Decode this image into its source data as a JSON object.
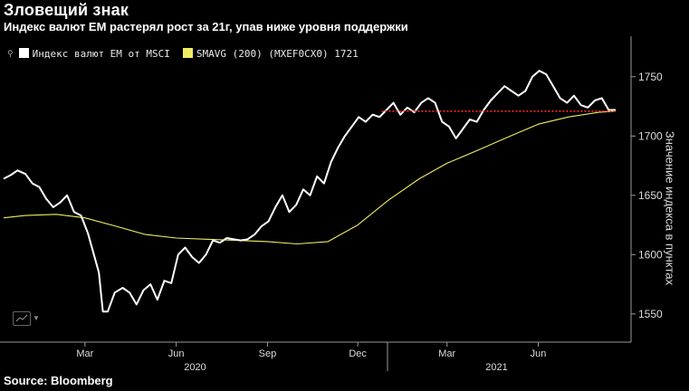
{
  "header": {
    "title": "Зловещий знак",
    "subtitle": "Индекс валют ЕМ растерял рост за 21г, упав ниже уровня поддержки"
  },
  "footer": {
    "source": "Source:  Bloomberg"
  },
  "legend": {
    "series1": "Индекс валют EM от MSCI",
    "series2": "SMAVG (200)  (MXEF0CX0) 1721"
  },
  "colors": {
    "series1": "#ffffff",
    "series2": "#f0ec64",
    "support": "#ff2a2a",
    "axis": "#9a9a9a"
  },
  "toolbar": {
    "chart_tool_icon": "line-chart-icon"
  },
  "chart_data": {
    "type": "line",
    "title": "Зловещий знак",
    "subtitle": "Индекс валют ЕМ растерял рост за 21г, упав ниже уровня поддержки",
    "ylabel": "Значение индекса в пунктах",
    "ylim": [
      1527,
      1775
    ],
    "yticks": [
      1550,
      1600,
      1650,
      1700,
      1750
    ],
    "xlim": [
      "2019-12-10",
      "2021-08-18"
    ],
    "month_ticks": [
      {
        "label": "Mar",
        "x": "2020-03-01"
      },
      {
        "label": "Jun",
        "x": "2020-06-01"
      },
      {
        "label": "Sep",
        "x": "2020-09-01"
      },
      {
        "label": "Dec",
        "x": "2020-12-01"
      },
      {
        "label": "Mar",
        "x": "2021-03-01"
      },
      {
        "label": "Jun",
        "x": "2021-06-01"
      }
    ],
    "year_labels": [
      {
        "label": "2020",
        "x": "2020-06-20"
      },
      {
        "label": "2021",
        "x": "2021-04-20"
      }
    ],
    "year_separator": "2020-12-31",
    "legend_position": "top-left",
    "grid": false,
    "series": [
      {
        "name": "Индекс валют EM от MSCI",
        "points": [
          [
            "2019-12-10",
            1664
          ],
          [
            "2019-12-17",
            1667
          ],
          [
            "2019-12-24",
            1671
          ],
          [
            "2020-01-01",
            1668
          ],
          [
            "2020-01-08",
            1660
          ],
          [
            "2020-01-15",
            1657
          ],
          [
            "2020-01-22",
            1647
          ],
          [
            "2020-01-29",
            1640
          ],
          [
            "2020-02-05",
            1644
          ],
          [
            "2020-02-12",
            1650
          ],
          [
            "2020-02-19",
            1636
          ],
          [
            "2020-02-26",
            1633
          ],
          [
            "2020-03-04",
            1618
          ],
          [
            "2020-03-10",
            1600
          ],
          [
            "2020-03-15",
            1585
          ],
          [
            "2020-03-19",
            1552
          ],
          [
            "2020-03-24",
            1552
          ],
          [
            "2020-03-31",
            1568
          ],
          [
            "2020-04-08",
            1572
          ],
          [
            "2020-04-15",
            1568
          ],
          [
            "2020-04-22",
            1558
          ],
          [
            "2020-04-29",
            1570
          ],
          [
            "2020-05-06",
            1575
          ],
          [
            "2020-05-13",
            1562
          ],
          [
            "2020-05-20",
            1578
          ],
          [
            "2020-05-27",
            1576
          ],
          [
            "2020-06-03",
            1600
          ],
          [
            "2020-06-10",
            1606
          ],
          [
            "2020-06-17",
            1598
          ],
          [
            "2020-06-24",
            1593
          ],
          [
            "2020-07-01",
            1600
          ],
          [
            "2020-07-08",
            1612
          ],
          [
            "2020-07-15",
            1610
          ],
          [
            "2020-07-22",
            1614
          ],
          [
            "2020-07-29",
            1613
          ],
          [
            "2020-08-05",
            1612
          ],
          [
            "2020-08-12",
            1613
          ],
          [
            "2020-08-19",
            1617
          ],
          [
            "2020-08-26",
            1624
          ],
          [
            "2020-09-02",
            1628
          ],
          [
            "2020-09-09",
            1640
          ],
          [
            "2020-09-16",
            1650
          ],
          [
            "2020-09-23",
            1636
          ],
          [
            "2020-09-30",
            1642
          ],
          [
            "2020-10-07",
            1655
          ],
          [
            "2020-10-14",
            1650
          ],
          [
            "2020-10-21",
            1666
          ],
          [
            "2020-10-28",
            1660
          ],
          [
            "2020-11-04",
            1678
          ],
          [
            "2020-11-11",
            1690
          ],
          [
            "2020-11-18",
            1700
          ],
          [
            "2020-11-25",
            1708
          ],
          [
            "2020-12-02",
            1716
          ],
          [
            "2020-12-09",
            1712
          ],
          [
            "2020-12-16",
            1718
          ],
          [
            "2020-12-23",
            1716
          ],
          [
            "2020-12-30",
            1722
          ],
          [
            "2021-01-06",
            1728
          ],
          [
            "2021-01-13",
            1718
          ],
          [
            "2021-01-20",
            1724
          ],
          [
            "2021-01-27",
            1720
          ],
          [
            "2021-02-03",
            1728
          ],
          [
            "2021-02-10",
            1732
          ],
          [
            "2021-02-17",
            1728
          ],
          [
            "2021-02-24",
            1712
          ],
          [
            "2021-03-03",
            1708
          ],
          [
            "2021-03-10",
            1698
          ],
          [
            "2021-03-17",
            1706
          ],
          [
            "2021-03-24",
            1714
          ],
          [
            "2021-03-31",
            1712
          ],
          [
            "2021-04-07",
            1722
          ],
          [
            "2021-04-14",
            1730
          ],
          [
            "2021-04-21",
            1736
          ],
          [
            "2021-04-28",
            1742
          ],
          [
            "2021-05-05",
            1738
          ],
          [
            "2021-05-12",
            1734
          ],
          [
            "2021-05-19",
            1738
          ],
          [
            "2021-05-26",
            1750
          ],
          [
            "2021-06-02",
            1755
          ],
          [
            "2021-06-09",
            1752
          ],
          [
            "2021-06-16",
            1742
          ],
          [
            "2021-06-23",
            1732
          ],
          [
            "2021-06-30",
            1728
          ],
          [
            "2021-07-07",
            1734
          ],
          [
            "2021-07-14",
            1726
          ],
          [
            "2021-07-21",
            1724
          ],
          [
            "2021-07-28",
            1730
          ],
          [
            "2021-08-04",
            1732
          ],
          [
            "2021-08-11",
            1722
          ],
          [
            "2021-08-18",
            1722
          ]
        ]
      },
      {
        "name": "SMAVG (200)  (MXEF0CX0) 1721",
        "points": [
          [
            "2019-12-10",
            1631
          ],
          [
            "2020-01-01",
            1633
          ],
          [
            "2020-02-01",
            1634
          ],
          [
            "2020-03-01",
            1631
          ],
          [
            "2020-04-01",
            1624
          ],
          [
            "2020-05-01",
            1617
          ],
          [
            "2020-06-01",
            1614
          ],
          [
            "2020-07-01",
            1613
          ],
          [
            "2020-08-01",
            1612
          ],
          [
            "2020-09-01",
            1611
          ],
          [
            "2020-10-01",
            1609
          ],
          [
            "2020-11-01",
            1611
          ],
          [
            "2020-12-01",
            1625
          ],
          [
            "2021-01-01",
            1646
          ],
          [
            "2021-02-01",
            1664
          ],
          [
            "2021-03-01",
            1677
          ],
          [
            "2021-04-01",
            1688
          ],
          [
            "2021-05-01",
            1699
          ],
          [
            "2021-06-01",
            1710
          ],
          [
            "2021-07-01",
            1716
          ],
          [
            "2021-08-01",
            1720
          ],
          [
            "2021-08-18",
            1721
          ]
        ]
      }
    ],
    "support_line": {
      "y": 1721,
      "x_start": "2020-12-25",
      "x_end": "2021-08-18"
    }
  }
}
